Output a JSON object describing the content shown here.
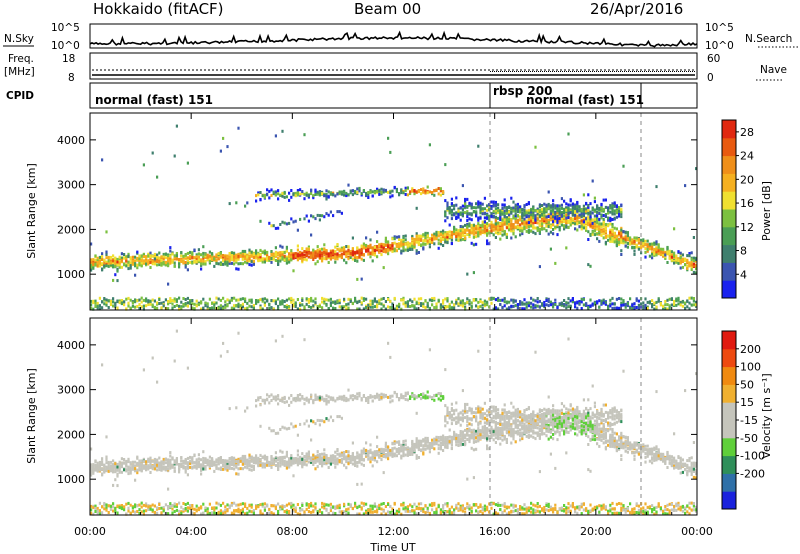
{
  "header": {
    "station": "Hokkaido (fitACF)",
    "beam": "Beam 00",
    "date": "26/Apr/2016"
  },
  "nsky_panel": {
    "label": "N.Sky",
    "left_ticks": [
      "10^5",
      "10^0"
    ],
    "right_ticks": [
      "10^5",
      "10^0"
    ],
    "right_label": "N.Search"
  },
  "freq_panel": {
    "label_line1": "Freq.",
    "label_line2": "[MHz]",
    "left_ticks": [
      "18",
      "8"
    ],
    "right_ticks": [
      "60",
      "0"
    ],
    "right_label": "Nave"
  },
  "cpid_panel": {
    "label": "CPID",
    "mode1": "normal (fast) 151",
    "mode2": "rbsp 200",
    "mode3": "normal (fast) 151"
  },
  "chart_data": [
    {
      "type": "heatmap",
      "name": "power",
      "ylabel": "Slant Range [km]",
      "yticks": [
        "1000",
        "2000",
        "3000",
        "4000"
      ],
      "ylim": [
        200,
        4600
      ],
      "xlim_hours": [
        0,
        24
      ],
      "colorbar": {
        "label": "Power [dB]",
        "ticks": [
          "4",
          "8",
          "12",
          "16",
          "20",
          "24",
          "28"
        ],
        "range": [
          0,
          30
        ],
        "colors": [
          "#1a22ee",
          "#3b55b0",
          "#3f7f6e",
          "#4a9e55",
          "#7cc040",
          "#f0e030",
          "#f5b020",
          "#ef8f1a",
          "#e85a10",
          "#e02810"
        ]
      }
    },
    {
      "type": "heatmap",
      "name": "velocity",
      "ylabel": "Slant Range [km]",
      "yticks": [
        "1000",
        "2000",
        "3000",
        "4000"
      ],
      "ylim": [
        200,
        4600
      ],
      "xlim_hours": [
        0,
        24
      ],
      "colorbar": {
        "label": "Velocity [m s⁻¹]",
        "ticks": [
          "200",
          "100",
          "50",
          "15",
          "-15",
          "-50",
          "-100",
          "-200"
        ],
        "colors": [
          "#1a22dd",
          "#2f70a8",
          "#2f8f5a",
          "#5fcf3a",
          "#c5c5bc",
          "#c5c5bc",
          "#f0b030",
          "#f08a10",
          "#ee4a10",
          "#e01a10"
        ]
      }
    }
  ],
  "xaxis": {
    "ticks": [
      "00:00",
      "04:00",
      "08:00",
      "12:00",
      "16:00",
      "20:00",
      "00:00"
    ],
    "label": "Time UT"
  }
}
